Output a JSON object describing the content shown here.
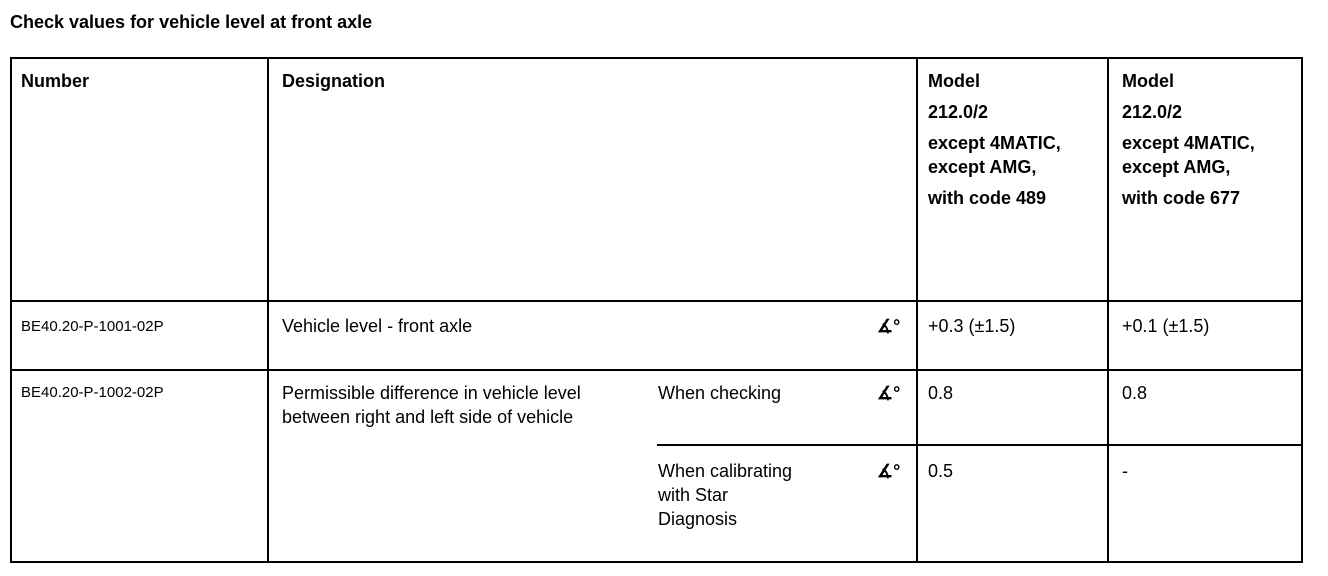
{
  "title": "Check values for vehicle level at front axle",
  "headers": {
    "number": "Number",
    "designation": "Designation",
    "model1": [
      "Model",
      "212.0/2",
      "except 4MATIC,",
      "except AMG,",
      "with code 489"
    ],
    "model2": [
      "Model",
      "212.0/2",
      "except 4MATIC,",
      "except AMG,",
      "with code 677"
    ]
  },
  "rows": [
    {
      "number": "BE40.20-P-1001-02P",
      "designation": "Vehicle level - front axle",
      "unit": "∡°",
      "model1": "+0.3 (±1.5)",
      "model2": "+0.1 (±1.5)"
    },
    {
      "number": "BE40.20-P-1002-02P",
      "designation": [
        "Permissible difference in vehicle level",
        "between right and left side of vehicle"
      ],
      "sub": [
        {
          "condition": [
            "When checking"
          ],
          "unit": "∡°",
          "model1": "0.8",
          "model2": "0.8"
        },
        {
          "condition": [
            "When calibrating",
            "with Star",
            "Diagnosis"
          ],
          "unit": "∡°",
          "model1": "0.5",
          "model2": "-"
        }
      ]
    }
  ]
}
